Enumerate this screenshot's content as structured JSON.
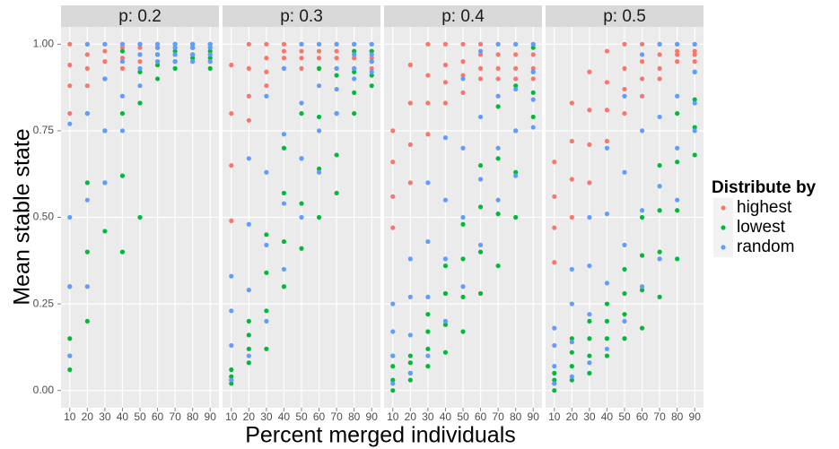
{
  "chart_data": {
    "type": "scatter",
    "x_label": "Percent merged individuals",
    "y_label": "Mean stable state",
    "legend_title": "Distribute by",
    "series": [
      {
        "name": "highest",
        "color": "#F8766D"
      },
      {
        "name": "lowest",
        "color": "#00BA38"
      },
      {
        "name": "random",
        "color": "#619CFF"
      }
    ],
    "x": [
      10,
      20,
      30,
      40,
      50,
      60,
      70,
      80,
      90
    ],
    "xlim": [
      5,
      95
    ],
    "xticks": [
      10,
      20,
      30,
      40,
      50,
      60,
      70,
      80,
      90
    ],
    "ylim": [
      -0.05,
      1.05
    ],
    "yticks": [
      {
        "value": 0,
        "label": "0.00"
      },
      {
        "value": 0.25,
        "label": "0.25"
      },
      {
        "value": 0.5,
        "label": "0.50"
      },
      {
        "value": 0.75,
        "label": "0.75"
      },
      {
        "value": 1,
        "label": "1.00"
      }
    ],
    "grid": true,
    "facets": [
      {
        "label": "p: 0.2",
        "values": [
          [
            [
              0.8,
              0.88,
              0.94,
              1
            ],
            [
              0.88,
              0.93,
              0.97,
              1
            ],
            [
              0.9,
              0.95,
              0.98,
              1
            ],
            [
              0.93,
              0.96,
              0.99,
              1
            ],
            [
              0.95,
              0.97,
              0.99,
              1
            ],
            [
              0.95,
              0.97,
              0.99,
              1
            ],
            [
              0.95,
              0.97,
              0.99,
              1
            ],
            [
              0.95,
              0.97,
              0.99,
              1
            ],
            [
              0.95,
              0.97,
              0.99,
              1
            ]
          ],
          [
            [
              0.06,
              0.1,
              0.15,
              0.3
            ],
            [
              0.2,
              0.4,
              0.6,
              0.8
            ],
            [
              0.46,
              0.6,
              0.75,
              0.9
            ],
            [
              0.4,
              0.62,
              0.8,
              0.98
            ],
            [
              0.5,
              0.83,
              0.92,
              1
            ],
            [
              0.9,
              0.94,
              0.97,
              0.99
            ],
            [
              0.93,
              0.95,
              0.98,
              1
            ],
            [
              0.96,
              0.97,
              0.99,
              1
            ],
            [
              0.93,
              0.96,
              0.98,
              1
            ]
          ],
          [
            [
              0.1,
              0.3,
              0.5,
              0.77
            ],
            [
              0.3,
              0.55,
              0.8,
              1
            ],
            [
              0.6,
              0.75,
              0.9,
              1
            ],
            [
              0.75,
              0.85,
              0.95,
              1
            ],
            [
              0.88,
              0.93,
              0.97,
              1
            ],
            [
              0.95,
              0.97,
              0.99,
              1
            ],
            [
              0.95,
              0.97,
              0.99,
              1
            ],
            [
              0.95,
              0.97,
              0.99,
              1
            ],
            [
              0.95,
              0.97,
              0.99,
              1
            ]
          ]
        ]
      },
      {
        "label": "p: 0.3",
        "values": [
          [
            [
              0.49,
              0.65,
              0.8,
              0.94
            ],
            [
              0.78,
              0.85,
              0.93,
              1
            ],
            [
              0.88,
              0.92,
              0.96,
              1
            ],
            [
              0.93,
              0.96,
              0.98,
              1
            ],
            [
              0.93,
              0.96,
              0.98,
              1
            ],
            [
              0.93,
              0.96,
              0.98,
              1
            ],
            [
              0.93,
              0.96,
              0.98,
              1
            ],
            [
              0.93,
              0.96,
              0.98,
              1
            ],
            [
              0.93,
              0.96,
              0.98,
              1
            ]
          ],
          [
            [
              0.02,
              0.03,
              0.04,
              0.06
            ],
            [
              0.08,
              0.12,
              0.16,
              0.2
            ],
            [
              0.12,
              0.23,
              0.34,
              0.45
            ],
            [
              0.3,
              0.43,
              0.57,
              0.7
            ],
            [
              0.41,
              0.54,
              0.67,
              0.8
            ],
            [
              0.5,
              0.64,
              0.79,
              0.93
            ],
            [
              0.57,
              0.68,
              0.8,
              0.91
            ],
            [
              0.8,
              0.86,
              0.92,
              0.98
            ],
            [
              0.88,
              0.91,
              0.95,
              0.98
            ]
          ],
          [
            [
              0.03,
              0.13,
              0.23,
              0.33
            ],
            [
              0.1,
              0.29,
              0.48,
              0.67
            ],
            [
              0.2,
              0.42,
              0.63,
              0.85
            ],
            [
              0.35,
              0.54,
              0.74,
              0.93
            ],
            [
              0.5,
              0.67,
              0.83,
              1
            ],
            [
              0.63,
              0.75,
              0.88,
              1
            ],
            [
              0.8,
              0.87,
              0.93,
              1
            ],
            [
              0.9,
              0.93,
              0.97,
              1
            ],
            [
              0.92,
              0.95,
              0.97,
              1
            ]
          ]
        ]
      },
      {
        "label": "p: 0.4",
        "values": [
          [
            [
              0.47,
              0.56,
              0.66,
              0.75
            ],
            [
              0.6,
              0.71,
              0.83,
              0.94
            ],
            [
              0.74,
              0.83,
              0.91,
              1
            ],
            [
              0.83,
              0.89,
              0.94,
              1
            ],
            [
              0.86,
              0.91,
              0.95,
              1
            ],
            [
              0.9,
              0.93,
              0.97,
              1
            ],
            [
              0.9,
              0.93,
              0.97,
              1
            ],
            [
              0.9,
              0.93,
              0.97,
              1
            ],
            [
              0.9,
              0.93,
              0.97,
              1
            ]
          ],
          [
            [
              0,
              0.03,
              0.07,
              0.1
            ],
            [
              0.03,
              0.05,
              0.08,
              0.1
            ],
            [
              0.07,
              0.12,
              0.17,
              0.22
            ],
            [
              0.11,
              0.19,
              0.28,
              0.36
            ],
            [
              0.17,
              0.27,
              0.38,
              0.48
            ],
            [
              0.28,
              0.4,
              0.53,
              0.65
            ],
            [
              0.36,
              0.51,
              0.67,
              0.82
            ],
            [
              0.5,
              0.63,
              0.75,
              0.88
            ],
            [
              0.79,
              0.86,
              0.92,
              0.99
            ]
          ],
          [
            [
              0.02,
              0.1,
              0.17,
              0.25
            ],
            [
              0.05,
              0.16,
              0.27,
              0.38
            ],
            [
              0.1,
              0.27,
              0.43,
              0.6
            ],
            [
              0.2,
              0.38,
              0.55,
              0.73
            ],
            [
              0.3,
              0.5,
              0.7,
              0.9
            ],
            [
              0.42,
              0.61,
              0.79,
              0.98
            ],
            [
              0.55,
              0.7,
              0.85,
              1
            ],
            [
              0.62,
              0.75,
              0.87,
              1
            ],
            [
              0.76,
              0.84,
              0.92,
              1
            ]
          ]
        ]
      },
      {
        "label": "p: 0.5",
        "values": [
          [
            [
              0.37,
              0.47,
              0.56,
              0.66
            ],
            [
              0.5,
              0.61,
              0.72,
              0.83
            ],
            [
              0.6,
              0.71,
              0.81,
              0.92
            ],
            [
              0.72,
              0.81,
              0.89,
              0.98
            ],
            [
              0.8,
              0.87,
              0.93,
              1
            ],
            [
              0.85,
              0.9,
              0.95,
              1
            ],
            [
              0.9,
              0.93,
              0.97,
              1
            ],
            [
              0.95,
              0.97,
              0.98,
              1
            ],
            [
              0.95,
              0.97,
              0.98,
              1
            ]
          ],
          [
            [
              0,
              0.02,
              0.03,
              0.05
            ],
            [
              0.03,
              0.07,
              0.11,
              0.15
            ],
            [
              0.05,
              0.1,
              0.15,
              0.2
            ],
            [
              0.1,
              0.15,
              0.2,
              0.25
            ],
            [
              0.15,
              0.22,
              0.28,
              0.35
            ],
            [
              0.18,
              0.29,
              0.39,
              0.5
            ],
            [
              0.27,
              0.4,
              0.52,
              0.65
            ],
            [
              0.38,
              0.52,
              0.66,
              0.8
            ],
            [
              0.68,
              0.76,
              0.84,
              0.92
            ]
          ],
          [
            [
              0.02,
              0.07,
              0.13,
              0.18
            ],
            [
              0.04,
              0.14,
              0.25,
              0.35
            ],
            [
              0.08,
              0.22,
              0.36,
              0.5
            ],
            [
              0.12,
              0.31,
              0.51,
              0.7
            ],
            [
              0.2,
              0.42,
              0.63,
              0.85
            ],
            [
              0.3,
              0.52,
              0.75,
              0.97
            ],
            [
              0.38,
              0.59,
              0.79,
              1
            ],
            [
              0.55,
              0.7,
              0.85,
              1
            ],
            [
              0.75,
              0.83,
              0.92,
              1
            ]
          ]
        ]
      }
    ]
  }
}
